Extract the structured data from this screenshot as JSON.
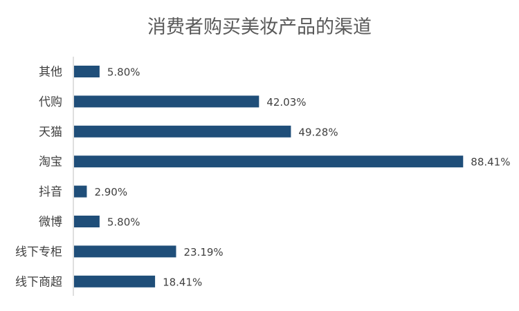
{
  "chart_data": {
    "type": "bar",
    "orientation": "horizontal",
    "title": "消费者购买美妆产品的渠道",
    "categories": [
      "其他",
      "代购",
      "天猫",
      "淘宝",
      "抖音",
      "微博",
      "线下专柜",
      "线下商超"
    ],
    "values": [
      5.8,
      42.03,
      49.28,
      88.41,
      2.9,
      5.8,
      23.19,
      18.41
    ],
    "value_labels": [
      "5.80%",
      "42.03%",
      "49.28%",
      "88.41%",
      "2.90%",
      "5.80%",
      "23.19%",
      "18.41%"
    ],
    "xlabel": "",
    "ylabel": "",
    "xlim": [
      0,
      100
    ],
    "grid": false,
    "legend": "none",
    "bar_color": "#1f4e79"
  }
}
